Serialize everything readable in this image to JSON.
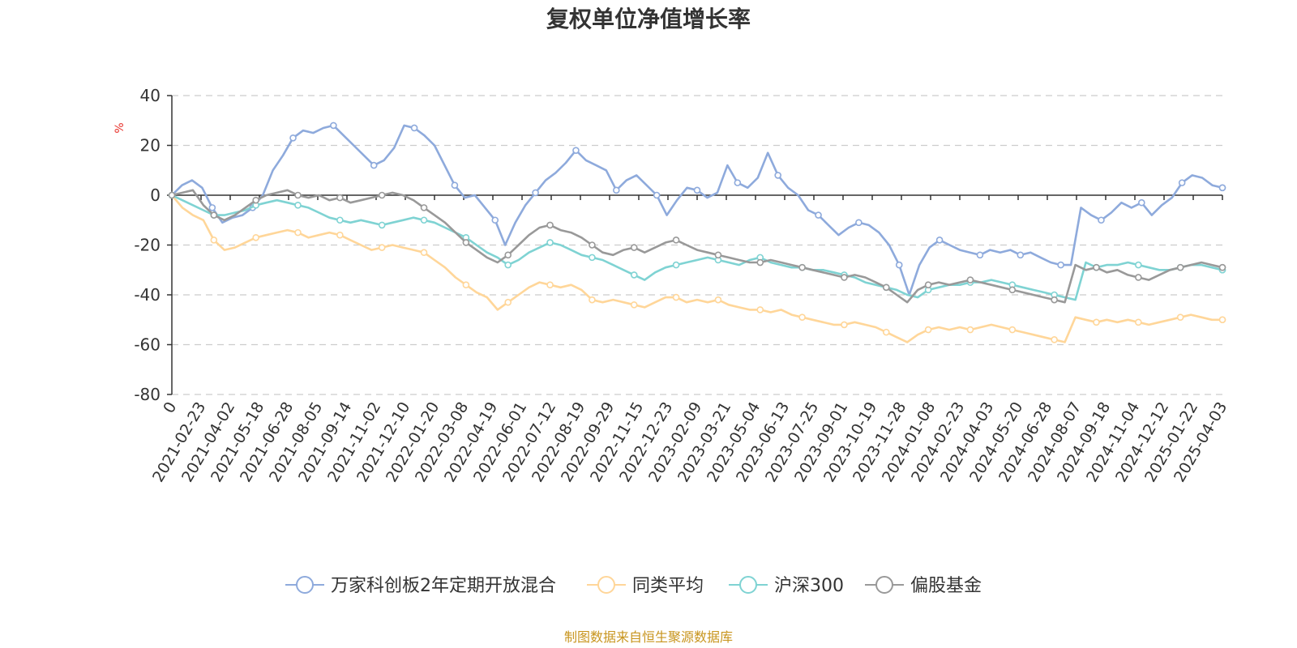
{
  "chart_data": {
    "type": "line",
    "title": "复权单位净值增长率",
    "ylabel": "%",
    "ylim": [
      -80,
      40
    ],
    "yticks": [
      40,
      20,
      0,
      -20,
      -40,
      -60,
      -80
    ],
    "grid": true,
    "legend_position": "bottom",
    "x_tick_labels": [
      "0",
      "2021-02-23",
      "2021-04-02",
      "2021-05-18",
      "2021-06-28",
      "2021-08-05",
      "2021-09-14",
      "2021-11-02",
      "2021-12-10",
      "2022-01-20",
      "2022-03-08",
      "2022-04-19",
      "2022-06-01",
      "2022-07-12",
      "2022-08-19",
      "2022-09-29",
      "2022-11-15",
      "2022-12-23",
      "2023-02-09",
      "2023-03-21",
      "2023-05-04",
      "2023-06-13",
      "2023-07-25",
      "2023-09-01",
      "2023-10-19",
      "2023-11-28",
      "2024-01-08",
      "2024-02-23",
      "2024-04-03",
      "2024-05-20",
      "2024-06-28",
      "2024-08-07",
      "2024-09-18",
      "2024-11-04",
      "2024-12-12",
      "2025-01-22",
      "2025-04-03"
    ],
    "series": [
      {
        "name": "万家科创板2年定期开放混合",
        "color": "#8eaadc",
        "values": [
          0,
          4,
          6,
          3,
          -5,
          -11,
          -9,
          -8,
          -5,
          0,
          10,
          16,
          23,
          26,
          25,
          27,
          28,
          24,
          20,
          16,
          12,
          14,
          19,
          28,
          27,
          24,
          20,
          12,
          4,
          -1,
          0,
          -5,
          -10,
          -20,
          -11,
          -4,
          1,
          6,
          9,
          13,
          18,
          14,
          12,
          10,
          2,
          6,
          8,
          4,
          0,
          -8,
          -2,
          3,
          2,
          -1,
          1,
          12,
          5,
          3,
          7,
          17,
          8,
          3,
          0,
          -6,
          -8,
          -12,
          -16,
          -13,
          -11,
          -12,
          -15,
          -20,
          -28,
          -40,
          -28,
          -21,
          -18,
          -20,
          -22,
          -23,
          -24,
          -22,
          -23,
          -22,
          -24,
          -23,
          -25,
          -27,
          -28,
          -28,
          -5,
          -8,
          -10,
          -7,
          -3,
          -5,
          -3,
          -8,
          -4,
          -1,
          5,
          8,
          7,
          4,
          3
        ]
      },
      {
        "name": "同类平均",
        "color": "#ffd699",
        "values": [
          0,
          -5,
          -8,
          -10,
          -18,
          -22,
          -21,
          -19,
          -17,
          -16,
          -15,
          -14,
          -15,
          -17,
          -16,
          -15,
          -16,
          -18,
          -20,
          -22,
          -21,
          -20,
          -21,
          -22,
          -23,
          -26,
          -29,
          -33,
          -36,
          -39,
          -41,
          -46,
          -43,
          -40,
          -37,
          -35,
          -36,
          -37,
          -36,
          -38,
          -42,
          -43,
          -42,
          -43,
          -44,
          -45,
          -43,
          -41,
          -41,
          -43,
          -42,
          -43,
          -42,
          -44,
          -45,
          -46,
          -46,
          -47,
          -46,
          -48,
          -49,
          -50,
          -51,
          -52,
          -52,
          -51,
          -52,
          -53,
          -55,
          -57,
          -59,
          -56,
          -54,
          -53,
          -54,
          -53,
          -54,
          -53,
          -52,
          -53,
          -54,
          -55,
          -56,
          -57,
          -58,
          -59,
          -49,
          -50,
          -51,
          -50,
          -51,
          -50,
          -51,
          -52,
          -51,
          -50,
          -49,
          -48,
          -49,
          -50,
          -50
        ]
      },
      {
        "name": "沪深300",
        "color": "#7fd3d3",
        "values": [
          0,
          -2,
          -4,
          -6,
          -8,
          -8,
          -7,
          -6,
          -4,
          -3,
          -2,
          -3,
          -4,
          -5,
          -7,
          -9,
          -10,
          -11,
          -10,
          -11,
          -12,
          -11,
          -10,
          -9,
          -10,
          -11,
          -13,
          -15,
          -17,
          -20,
          -23,
          -25,
          -28,
          -26,
          -23,
          -21,
          -19,
          -20,
          -22,
          -24,
          -25,
          -26,
          -28,
          -30,
          -32,
          -34,
          -31,
          -29,
          -28,
          -27,
          -26,
          -25,
          -26,
          -27,
          -28,
          -26,
          -25,
          -27,
          -28,
          -29,
          -29,
          -30,
          -30,
          -31,
          -32,
          -33,
          -35,
          -36,
          -37,
          -38,
          -40,
          -41,
          -38,
          -37,
          -36,
          -36,
          -35,
          -35,
          -34,
          -35,
          -36,
          -37,
          -38,
          -39,
          -40,
          -41,
          -42,
          -27,
          -29,
          -28,
          -28,
          -27,
          -28,
          -29,
          -30,
          -30,
          -29,
          -28,
          -28,
          -29,
          -30
        ]
      },
      {
        "name": "偏股基金",
        "color": "#999999",
        "values": [
          0,
          1,
          2,
          -4,
          -8,
          -10,
          -8,
          -5,
          -2,
          0,
          1,
          2,
          0,
          -1,
          0,
          -2,
          -1,
          -3,
          -2,
          -1,
          0,
          1,
          0,
          -2,
          -5,
          -8,
          -11,
          -15,
          -19,
          -22,
          -25,
          -27,
          -24,
          -20,
          -16,
          -13,
          -12,
          -14,
          -15,
          -17,
          -20,
          -23,
          -24,
          -22,
          -21,
          -23,
          -21,
          -19,
          -18,
          -20,
          -22,
          -23,
          -24,
          -25,
          -26,
          -27,
          -27,
          -26,
          -27,
          -28,
          -29,
          -30,
          -31,
          -32,
          -33,
          -32,
          -33,
          -35,
          -37,
          -40,
          -43,
          -38,
          -36,
          -35,
          -36,
          -35,
          -34,
          -35,
          -36,
          -37,
          -38,
          -39,
          -40,
          -41,
          -42,
          -43,
          -28,
          -30,
          -29,
          -31,
          -30,
          -32,
          -33,
          -34,
          -32,
          -30,
          -29,
          -28,
          -27,
          -28,
          -29
        ]
      }
    ]
  },
  "footer": {
    "source": "制图数据来自恒生聚源数据库",
    "color": "#c8951e"
  },
  "unit_color": "#e8312a",
  "legend_ticks_visible": true
}
